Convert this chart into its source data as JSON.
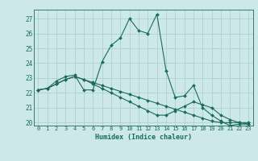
{
  "xlabel": "Humidex (Indice chaleur)",
  "background_color": "#cce8e8",
  "grid_color": "#aacccc",
  "line_color": "#1a6b5a",
  "x_values": [
    0,
    1,
    2,
    3,
    4,
    5,
    6,
    7,
    8,
    9,
    10,
    11,
    12,
    13,
    14,
    15,
    16,
    17,
    18,
    19,
    20,
    21,
    22,
    23
  ],
  "y_series1": [
    22.2,
    22.3,
    22.8,
    23.1,
    23.2,
    22.2,
    22.2,
    24.1,
    25.2,
    25.7,
    27.0,
    26.2,
    26.0,
    27.3,
    23.5,
    21.7,
    21.8,
    22.5,
    21.0,
    20.5,
    20.1,
    19.8,
    19.9,
    19.9
  ],
  "y_series2": [
    22.2,
    22.3,
    22.6,
    22.9,
    23.1,
    22.9,
    22.7,
    22.5,
    22.3,
    22.1,
    21.9,
    21.7,
    21.5,
    21.3,
    21.1,
    20.9,
    20.7,
    20.5,
    20.3,
    20.1,
    20.0,
    20.0,
    20.0,
    20.0
  ],
  "y_series3": [
    22.2,
    22.3,
    22.6,
    22.9,
    23.1,
    22.9,
    22.6,
    22.3,
    22.0,
    21.7,
    21.4,
    21.1,
    20.8,
    20.5,
    20.5,
    20.8,
    21.1,
    21.4,
    21.2,
    21.0,
    20.5,
    20.2,
    20.0,
    19.9
  ],
  "ylim": [
    19.8,
    27.6
  ],
  "xlim": [
    -0.5,
    23.5
  ],
  "yticks": [
    20,
    21,
    22,
    23,
    24,
    25,
    26,
    27
  ],
  "xticks": [
    0,
    1,
    2,
    3,
    4,
    5,
    6,
    7,
    8,
    9,
    10,
    11,
    12,
    13,
    14,
    15,
    16,
    17,
    18,
    19,
    20,
    21,
    22,
    23
  ],
  "marker_size": 2.0,
  "linewidth": 0.8,
  "tick_fontsize": 5.5,
  "xlabel_fontsize": 6.0
}
